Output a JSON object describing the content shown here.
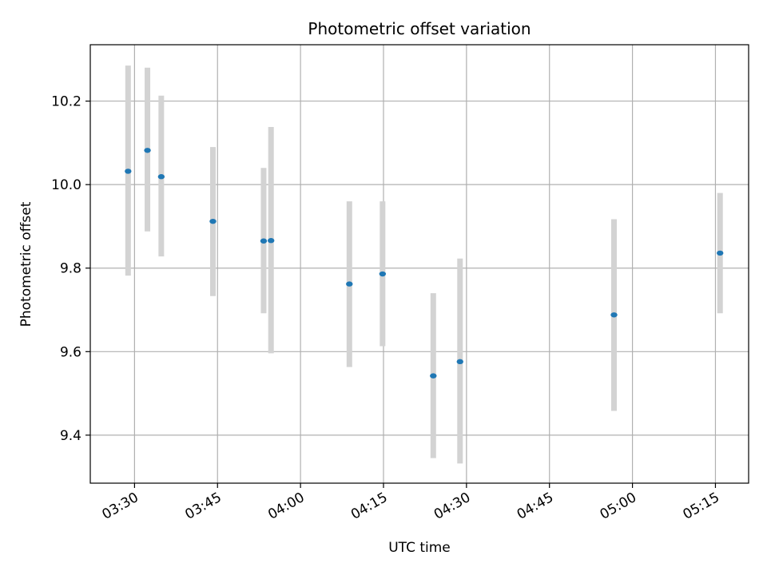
{
  "chart_data": {
    "type": "scatter",
    "title": "Photometric offset variation",
    "xlabel": "UTC time",
    "ylabel": "Photometric offset",
    "x_ticks": [
      "03:30",
      "03:45",
      "04:00",
      "04:15",
      "04:30",
      "04:45",
      "05:00",
      "05:15"
    ],
    "y_ticks": [
      "9.4",
      "9.6",
      "9.8",
      "10.0",
      "10.2"
    ],
    "xlim": [
      "03:22",
      "05:21"
    ],
    "ylim": [
      9.285,
      10.335
    ],
    "grid": true,
    "colors": {
      "point": "#1f77b4",
      "errorbar": "#d3d3d3",
      "grid": "#b0b0b0"
    },
    "points": [
      {
        "x": "03:28:50",
        "y": 10.032,
        "yerr_low": 9.782,
        "yerr_high": 10.285
      },
      {
        "x": "03:32:20",
        "y": 10.082,
        "yerr_low": 9.888,
        "yerr_high": 10.28
      },
      {
        "x": "03:34:50",
        "y": 10.019,
        "yerr_low": 9.828,
        "yerr_high": 10.213
      },
      {
        "x": "03:44:10",
        "y": 9.912,
        "yerr_low": 9.733,
        "yerr_high": 10.09
      },
      {
        "x": "03:53:20",
        "y": 9.865,
        "yerr_low": 9.692,
        "yerr_high": 10.04
      },
      {
        "x": "03:54:40",
        "y": 9.866,
        "yerr_low": 9.596,
        "yerr_high": 10.138
      },
      {
        "x": "04:08:50",
        "y": 9.762,
        "yerr_low": 9.563,
        "yerr_high": 9.96
      },
      {
        "x": "04:14:50",
        "y": 9.786,
        "yerr_low": 9.613,
        "yerr_high": 9.96
      },
      {
        "x": "04:24:00",
        "y": 9.542,
        "yerr_low": 9.345,
        "yerr_high": 9.74
      },
      {
        "x": "04:28:50",
        "y": 9.576,
        "yerr_low": 9.332,
        "yerr_high": 9.823
      },
      {
        "x": "04:56:40",
        "y": 9.688,
        "yerr_low": 9.458,
        "yerr_high": 9.917
      },
      {
        "x": "05:15:50",
        "y": 9.836,
        "yerr_low": 9.692,
        "yerr_high": 9.98
      }
    ]
  }
}
